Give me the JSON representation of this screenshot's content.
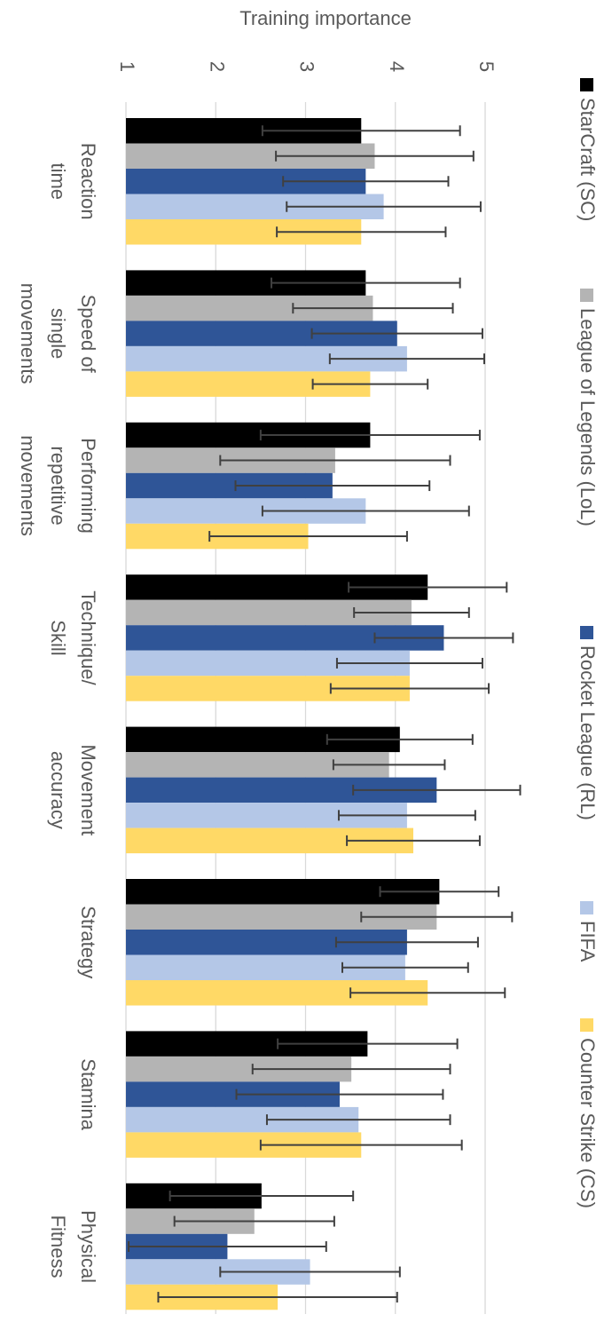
{
  "chart_data": {
    "type": "bar",
    "orientation": "rotated-90",
    "y_label": "Training importance",
    "categories": [
      "Reaction\ntime",
      "Speed of\nsingle\nmovements",
      "Performing\nrepetitive\nmovements",
      "Technique/\nSkill",
      "Movement\naccuracy",
      "Strategy",
      "Stamina",
      "Physical\nFitness"
    ],
    "series": [
      {
        "name": "StarCraft (SC)",
        "color": "#000000",
        "values": [
          3.62,
          3.67,
          3.72,
          4.36,
          4.05,
          4.49,
          3.69,
          2.51
        ],
        "errors": [
          1.1,
          1.05,
          1.22,
          0.88,
          0.81,
          0.66,
          1.0,
          1.02
        ]
      },
      {
        "name": "League of Legends (LoL)",
        "color": "#b4b4b4",
        "values": [
          3.77,
          3.75,
          3.33,
          4.18,
          3.93,
          4.46,
          3.51,
          2.43
        ],
        "errors": [
          1.1,
          0.89,
          1.28,
          0.64,
          0.62,
          0.84,
          1.1,
          0.89
        ]
      },
      {
        "name": "Rocket League (RL)",
        "color": "#2f5597",
        "values": [
          3.67,
          4.02,
          3.3,
          4.54,
          4.46,
          4.13,
          3.38,
          2.13
        ],
        "errors": [
          0.92,
          0.95,
          1.08,
          0.77,
          0.93,
          0.79,
          1.15,
          1.1
        ]
      },
      {
        "name": "FIFA",
        "color": "#b4c7e7",
        "values": [
          3.87,
          4.13,
          3.67,
          4.16,
          4.13,
          4.11,
          3.59,
          3.05
        ],
        "errors": [
          1.08,
          0.86,
          1.15,
          0.81,
          0.76,
          0.7,
          1.02,
          1.0
        ]
      },
      {
        "name": "Counter Strike (CS)",
        "color": "#ffd966",
        "values": [
          3.62,
          3.72,
          3.03,
          4.16,
          4.2,
          4.36,
          3.62,
          2.69
        ],
        "errors": [
          0.94,
          0.64,
          1.1,
          0.88,
          0.74,
          0.86,
          1.12,
          1.33
        ]
      }
    ],
    "error_color": "#404040",
    "ylim": [
      1,
      5
    ],
    "yticks": [
      1,
      2,
      3,
      4,
      5
    ],
    "grid": true,
    "legend": "bottom"
  }
}
